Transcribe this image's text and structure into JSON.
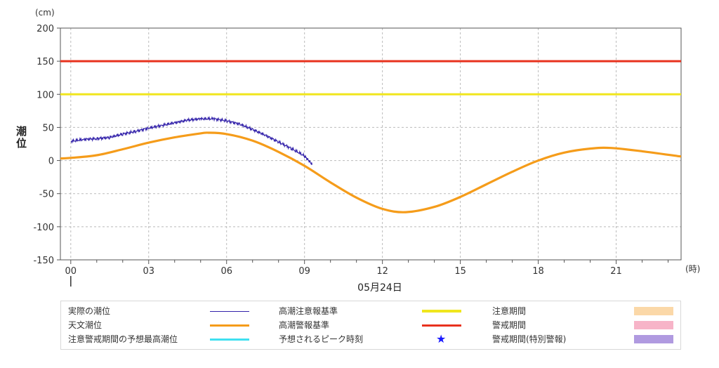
{
  "chart_data": {
    "type": "line",
    "yunit": "(cm)",
    "xunit": "(時)",
    "ylabel": "潮位",
    "date_label": "05月24日",
    "ylim": [
      -150,
      200
    ],
    "yticks": [
      200,
      150,
      100,
      50,
      0,
      -50,
      -100,
      -150
    ],
    "xlim": [
      -0.4,
      23.5
    ],
    "xticks": [
      "00",
      "03",
      "06",
      "09",
      "12",
      "15",
      "18",
      "21"
    ],
    "grid": true,
    "series": [
      {
        "name": "実際の潮位",
        "color": "#3322aa",
        "hours": [
          0.0,
          0.5,
          1.0,
          1.5,
          2.0,
          2.5,
          3.0,
          3.5,
          4.0,
          4.5,
          5.0,
          5.5,
          6.0,
          6.5,
          7.0,
          7.5,
          8.0,
          8.5,
          9.0,
          9.3
        ],
        "values": [
          29,
          32,
          33,
          35,
          40,
          44,
          49,
          53,
          57,
          61,
          63,
          63,
          60,
          55,
          47,
          38,
          28,
          18,
          7,
          -6
        ]
      },
      {
        "name": "天文潮位",
        "color": "#f59c1a",
        "hours": [
          -0.4,
          0,
          1,
          2,
          3,
          4,
          5,
          5.3,
          6,
          7,
          8,
          9,
          10,
          11,
          12,
          12.9,
          14,
          15,
          16,
          17,
          18,
          19,
          20,
          20.8,
          22,
          23.5
        ],
        "values": [
          3,
          4,
          8,
          17,
          27,
          35,
          41,
          42,
          40,
          30,
          13,
          -8,
          -33,
          -56,
          -73,
          -78,
          -70,
          -55,
          -36,
          -17,
          0,
          12,
          18,
          19,
          14,
          6
        ]
      }
    ],
    "reference_lines": [
      {
        "name": "高潮注意報基準",
        "value": 100,
        "color": "#f0e61e"
      },
      {
        "name": "高潮警報基準",
        "value": 150,
        "color": "#e8321e"
      }
    ],
    "legend": [
      {
        "label": "実際の潮位",
        "kind": "line",
        "color": "#3322aa",
        "width": 1
      },
      {
        "label": "高潮注意報基準",
        "kind": "line",
        "color": "#f0e61e",
        "width": 4
      },
      {
        "label": "注意期間",
        "kind": "box",
        "color": "#fbd8a8"
      },
      {
        "label": "天文潮位",
        "kind": "line",
        "color": "#f59c1a",
        "width": 3
      },
      {
        "label": "高潮警報基準",
        "kind": "line",
        "color": "#e8321e",
        "width": 3
      },
      {
        "label": "警戒期間",
        "kind": "box",
        "color": "#f7b4c8"
      },
      {
        "label": "注意警戒期間の予想最高潮位",
        "kind": "line",
        "color": "#40e0f0",
        "width": 3
      },
      {
        "label": "予想されるピーク時刻",
        "kind": "star",
        "color": "#1a1aff",
        "symbol": "★"
      },
      {
        "label": "警戒期間(特別警報)",
        "kind": "box",
        "color": "#b09ae0"
      }
    ]
  }
}
